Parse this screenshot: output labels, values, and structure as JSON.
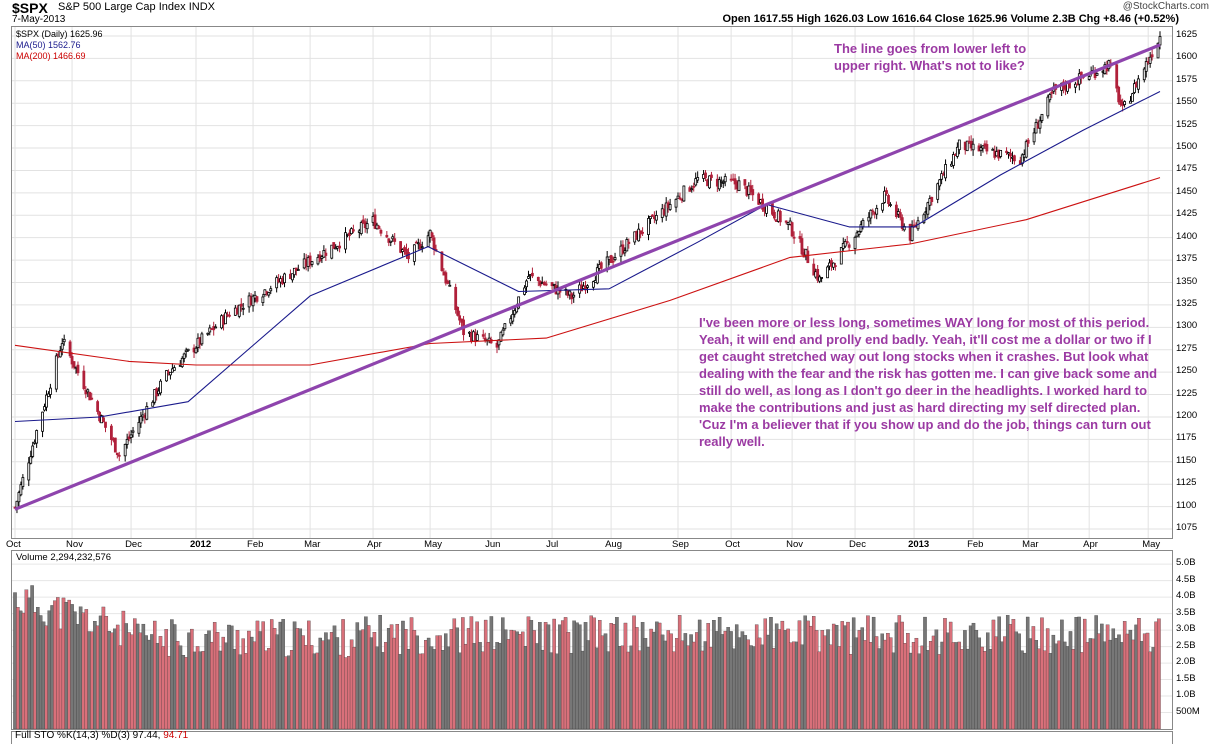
{
  "header": {
    "symbol": "$SPX",
    "name": "S&P 500 Large Cap Index",
    "exchange": "INDX",
    "date": "7-May-2013",
    "brand": "@StockCharts.com",
    "quote": "Open 1617.55   High 1626.03   Low 1616.64   Close 1625.96   Volume 2.3B   Chg +8.46 (+0.52%)"
  },
  "legend": {
    "price": "$SPX (Daily) 1625.96",
    "ma50": "MA(50) 1562.76",
    "ma200": "MA(200) 1466.69"
  },
  "annotations": {
    "top": "The line goes from lower left to upper right.  What's not to like?",
    "bottom": "I've been more or less long, sometimes WAY long for most of this period.  Yeah, it will end and prolly end badly. Yeah, it'll cost me a dollar or two if I get caught stretched way out long stocks when it crashes. But look what dealing with the fear and the risk has gotten me. I can give back some and still do well, as long as I don't go deer in the headlights. I worked hard to make the contributions and just as hard directing my self directed plan.  'Cuz I'm a believer that if you show up and do the job, things can turn out really well."
  },
  "volume_label": "Volume 2,294,232,576",
  "sto_label": "Full STO %K(14,3) %D(3) 97.44,",
  "sto_value": "94.71",
  "colors": {
    "up": "#000000",
    "down": "#b0203a",
    "ma50": "#1a1a8c",
    "ma200": "#cc1111",
    "trend": "#8e44ad",
    "vol_up": "#777777",
    "vol_down": "#d9707a"
  },
  "chart_data": {
    "type": "line",
    "x_ticks": [
      "Oct",
      "Nov",
      "Dec",
      "2012",
      "Feb",
      "Mar",
      "Apr",
      "May",
      "Jun",
      "Jul",
      "Aug",
      "Sep",
      "Oct",
      "Nov",
      "Dec",
      "2013",
      "Feb",
      "Mar",
      "Apr",
      "May"
    ],
    "y_ticks": [
      1075,
      1100,
      1125,
      1150,
      1175,
      1200,
      1225,
      1250,
      1275,
      1300,
      1325,
      1350,
      1375,
      1400,
      1425,
      1450,
      1475,
      1500,
      1525,
      1550,
      1575,
      1600,
      1625
    ],
    "ylim": [
      1065,
      1635
    ],
    "series": [
      {
        "name": "$SPX (Daily)",
        "x": [
          "2011-10-03",
          "2011-10-27",
          "2011-11-25",
          "2011-12-20",
          "2012-01-20",
          "2012-03-01",
          "2012-04-02",
          "2012-04-20",
          "2012-05-01",
          "2012-05-18",
          "2012-06-04",
          "2012-06-20",
          "2012-07-12",
          "2012-08-15",
          "2012-09-14",
          "2012-10-05",
          "2012-10-31",
          "2012-11-15",
          "2012-12-18",
          "2012-12-31",
          "2013-01-25",
          "2013-02-25",
          "2013-03-14",
          "2013-04-11",
          "2013-04-18",
          "2013-05-07"
        ],
        "values": [
          1099,
          1285,
          1158,
          1250,
          1316,
          1374,
          1419,
          1378,
          1405,
          1295,
          1278,
          1357,
          1334,
          1405,
          1465,
          1460,
          1412,
          1353,
          1446,
          1402,
          1503,
          1488,
          1563,
          1593,
          1541,
          1625
        ]
      },
      {
        "name": "MA(50)",
        "x": [
          "2011-10-03",
          "2011-11-15",
          "2011-12-30",
          "2012-03-01",
          "2012-04-30",
          "2012-06-15",
          "2012-07-31",
          "2012-09-14",
          "2012-10-19",
          "2012-11-30",
          "2013-01-02",
          "2013-02-15",
          "2013-03-29",
          "2013-05-07"
        ],
        "values": [
          1195,
          1200,
          1217,
          1335,
          1390,
          1340,
          1343,
          1395,
          1437,
          1412,
          1412,
          1470,
          1520,
          1563
        ]
      },
      {
        "name": "MA(200)",
        "x": [
          "2011-10-03",
          "2011-11-30",
          "2012-01-03",
          "2012-03-01",
          "2012-05-01",
          "2012-06-29",
          "2012-08-31",
          "2012-10-31",
          "2012-12-31",
          "2013-02-28",
          "2013-05-07"
        ],
        "values": [
          1280,
          1262,
          1258,
          1258,
          1282,
          1288,
          1330,
          1378,
          1393,
          1420,
          1467
        ]
      },
      {
        "name": "Trend line",
        "x": [
          "2011-10-03",
          "2013-05-07"
        ],
        "values": [
          1097,
          1615
        ]
      }
    ],
    "volume": {
      "ylim": [
        0,
        5.4
      ],
      "y_ticks": [
        "500M",
        "1.0B",
        "1.5B",
        "2.0B",
        "2.5B",
        "3.0B",
        "3.5B",
        "4.0B",
        "4.5B",
        "5.0B"
      ]
    }
  }
}
